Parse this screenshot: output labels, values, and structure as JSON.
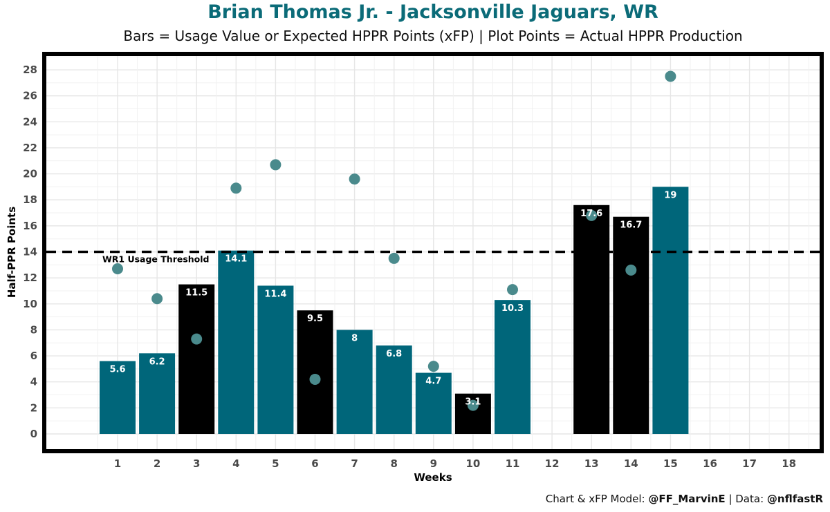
{
  "chart_data": {
    "type": "bar",
    "title": "Brian Thomas Jr. - Jacksonville Jaguars, WR",
    "subtitle": "Bars = Usage Value or Expected HPPR Points (xFP) | Plot Points = Actual HPPR Production",
    "xlabel": "Weeks",
    "ylabel": "Half-PPR Points",
    "ylim": [
      -1,
      29
    ],
    "yticks": [
      0,
      2,
      4,
      6,
      8,
      10,
      12,
      14,
      16,
      18,
      20,
      22,
      24,
      26,
      28
    ],
    "x_ticks": [
      "1",
      "2",
      "3",
      "4",
      "5",
      "6",
      "7",
      "8",
      "9",
      "10",
      "11",
      "12",
      "13",
      "14",
      "15",
      "16",
      "17",
      "18"
    ],
    "grid": true,
    "threshold": {
      "value": 14,
      "label": "WR1 Usage Threshold",
      "style": "dashed"
    },
    "bar_series": {
      "name": "Usage Value (xFP)",
      "points": [
        {
          "week": 1,
          "value": 5.6,
          "label": "5.6",
          "color": "#00667a"
        },
        {
          "week": 2,
          "value": 6.2,
          "label": "6.2",
          "color": "#00667a"
        },
        {
          "week": 3,
          "value": 11.5,
          "label": "11.5",
          "color": "#000000"
        },
        {
          "week": 4,
          "value": 14.1,
          "label": "14.1",
          "color": "#00667a"
        },
        {
          "week": 5,
          "value": 11.4,
          "label": "11.4",
          "color": "#00667a"
        },
        {
          "week": 6,
          "value": 9.5,
          "label": "9.5",
          "color": "#000000"
        },
        {
          "week": 7,
          "value": 8,
          "label": "8",
          "color": "#00667a"
        },
        {
          "week": 8,
          "value": 6.8,
          "label": "6.8",
          "color": "#00667a"
        },
        {
          "week": 9,
          "value": 4.7,
          "label": "4.7",
          "color": "#00667a"
        },
        {
          "week": 10,
          "value": 3.1,
          "label": "3.1",
          "color": "#000000"
        },
        {
          "week": 11,
          "value": 10.3,
          "label": "10.3",
          "color": "#00667a"
        },
        {
          "week": 13,
          "value": 17.6,
          "label": "17.6",
          "color": "#000000"
        },
        {
          "week": 14,
          "value": 16.7,
          "label": "16.7",
          "color": "#000000"
        },
        {
          "week": 15,
          "value": 19,
          "label": "19",
          "color": "#00667a"
        }
      ]
    },
    "point_series": {
      "name": "Actual HPPR Production",
      "color": "#4a8a8c",
      "points": [
        {
          "week": 1,
          "value": 12.7
        },
        {
          "week": 2,
          "value": 10.4
        },
        {
          "week": 3,
          "value": 7.3
        },
        {
          "week": 4,
          "value": 18.9
        },
        {
          "week": 5,
          "value": 20.7
        },
        {
          "week": 6,
          "value": 4.2
        },
        {
          "week": 7,
          "value": 19.6
        },
        {
          "week": 8,
          "value": 13.5
        },
        {
          "week": 9,
          "value": 5.2
        },
        {
          "week": 10,
          "value": 2.2
        },
        {
          "week": 11,
          "value": 11.1
        },
        {
          "week": 13,
          "value": 16.8
        },
        {
          "week": 14,
          "value": 12.6
        },
        {
          "week": 15,
          "value": 27.5
        }
      ]
    }
  },
  "footer": {
    "model_prefix": "Chart & xFP Model: ",
    "model_handle": "@FF_MarvinE",
    "data_prefix": " | Data: ",
    "data_handle": "@nflfastR"
  }
}
